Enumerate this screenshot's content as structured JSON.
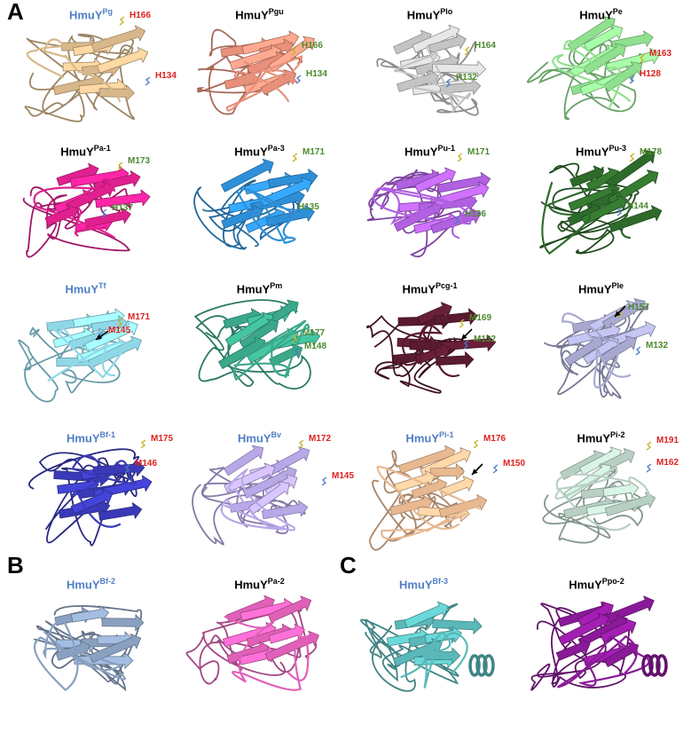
{
  "panels": [
    {
      "letter": "A"
    },
    {
      "letter": "B"
    },
    {
      "letter": "C"
    }
  ],
  "colors": {
    "title_blue": "#4f7ec5",
    "title_black": "#000000",
    "label_red": "#e02020",
    "label_green": "#4c8a2e"
  },
  "proteins": [
    {
      "base": "HmuY",
      "sup": "Pg",
      "title_color": "#4f7ec5",
      "color": "#d8b88a",
      "labels": [
        {
          "text": "H166",
          "color": "#e02020"
        },
        {
          "text": "H134",
          "color": "#e02020"
        }
      ],
      "arrow": false
    },
    {
      "base": "HmuY",
      "sup": "Pgu",
      "title_color": "#000000",
      "color": "#e8907a",
      "labels": [
        {
          "text": "H166",
          "color": "#4c8a2e"
        },
        {
          "text": "H134",
          "color": "#4c8a2e"
        }
      ],
      "arrow": false
    },
    {
      "base": "HmuY",
      "sup": "Plo",
      "title_color": "#000000",
      "color": "#c4c4c4",
      "labels": [
        {
          "text": "H164",
          "color": "#4c8a2e"
        },
        {
          "text": "H132",
          "color": "#4c8a2e"
        }
      ],
      "arrow": false
    },
    {
      "base": "HmuY",
      "sup": "Pe",
      "title_color": "#000000",
      "color": "#8fe08f",
      "labels": [
        {
          "text": "M163",
          "color": "#e02020"
        },
        {
          "text": "H128",
          "color": "#e02020"
        }
      ],
      "arrow": false
    },
    {
      "base": "HmuY",
      "sup": "Pa-1",
      "title_color": "#000000",
      "color": "#e0208f",
      "labels": [
        {
          "text": "M173",
          "color": "#4c8a2e"
        },
        {
          "text": "H137",
          "color": "#4c8a2e"
        }
      ],
      "arrow": false
    },
    {
      "base": "HmuY",
      "sup": "Pa-3",
      "title_color": "#000000",
      "color": "#2e8fd8",
      "labels": [
        {
          "text": "M171",
          "color": "#4c8a2e"
        },
        {
          "text": "H135",
          "color": "#4c8a2e"
        }
      ],
      "arrow": false
    },
    {
      "base": "HmuY",
      "sup": "Pu-1",
      "title_color": "#000000",
      "color": "#b060e0",
      "labels": [
        {
          "text": "M171",
          "color": "#4c8a2e"
        },
        {
          "text": "H136",
          "color": "#4c8a2e"
        }
      ],
      "arrow": false
    },
    {
      "base": "HmuY",
      "sup": "Pu-3",
      "title_color": "#000000",
      "color": "#2e6a2a",
      "labels": [
        {
          "text": "M178",
          "color": "#4c8a2e"
        },
        {
          "text": "H144",
          "color": "#4c8a2e"
        }
      ],
      "arrow": false
    },
    {
      "base": "HmuY",
      "sup": "Tf",
      "title_color": "#4f7ec5",
      "color": "#8fd8e8",
      "labels": [
        {
          "text": "M171",
          "color": "#e02020"
        },
        {
          "text": "M145",
          "color": "#e02020"
        }
      ],
      "arrow": true
    },
    {
      "base": "HmuY",
      "sup": "Pm",
      "title_color": "#000000",
      "color": "#3aa88a",
      "labels": [
        {
          "text": "M177",
          "color": "#4c8a2e"
        },
        {
          "text": "M148",
          "color": "#4c8a2e"
        }
      ],
      "arrow": false
    },
    {
      "base": "HmuY",
      "sup": "Pcg-1",
      "title_color": "#000000",
      "color": "#5a1a30",
      "labels": [
        {
          "text": "M169",
          "color": "#4c8a2e"
        },
        {
          "text": "M132",
          "color": "#4c8a2e"
        }
      ],
      "arrow": true
    },
    {
      "base": "HmuY",
      "sup": "Ple",
      "title_color": "#000000",
      "color": "#a8a8d0",
      "labels": [
        {
          "text": "H157",
          "color": "#4c8a2e"
        },
        {
          "text": "M132",
          "color": "#4c8a2e"
        }
      ],
      "arrow": true
    },
    {
      "base": "HmuY",
      "sup": "Bf-1",
      "title_color": "#4f7ec5",
      "color": "#3a3ab8",
      "labels": [
        {
          "text": "M175",
          "color": "#e02020"
        },
        {
          "text": "M146",
          "color": "#e02020"
        }
      ],
      "arrow": false
    },
    {
      "base": "HmuY",
      "sup": "Bv",
      "title_color": "#4f7ec5",
      "color": "#b8a8e8",
      "labels": [
        {
          "text": "M172",
          "color": "#e02020"
        },
        {
          "text": "M145",
          "color": "#e02020"
        }
      ],
      "arrow": false
    },
    {
      "base": "HmuY",
      "sup": "Pi-1",
      "title_color": "#4f7ec5",
      "color": "#e8b890",
      "labels": [
        {
          "text": "M176",
          "color": "#e02020"
        },
        {
          "text": "M150",
          "color": "#e02020"
        }
      ],
      "arrow": true
    },
    {
      "base": "HmuY",
      "sup": "Pi-2",
      "title_color": "#000000",
      "color": "#b8d0c4",
      "labels": [
        {
          "text": "M191",
          "color": "#e02020"
        },
        {
          "text": "M162",
          "color": "#e02020"
        }
      ],
      "arrow": false
    },
    {
      "base": "HmuY",
      "sup": "Bf-2",
      "title_color": "#4f7ec5",
      "color": "#8aa0c0",
      "labels": [],
      "arrow": false
    },
    {
      "base": "HmuY",
      "sup": "Pa-2",
      "title_color": "#000000",
      "color": "#e060b8",
      "labels": [],
      "arrow": false
    },
    {
      "base": "HmuY",
      "sup": "Bf-3",
      "title_color": "#4f7ec5",
      "color": "#5ab8b8",
      "labels": [],
      "arrow": false
    },
    {
      "base": "HmuY",
      "sup": "Ppo-2",
      "title_color": "#000000",
      "color": "#8a1a98",
      "labels": [],
      "arrow": false
    }
  ]
}
